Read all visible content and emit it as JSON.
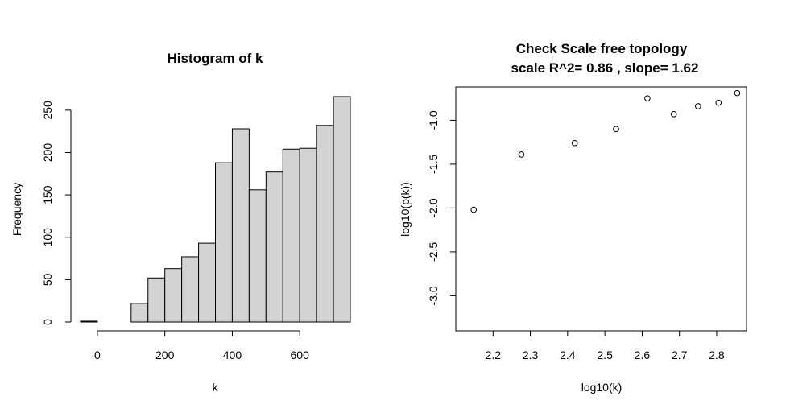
{
  "chart_data": [
    {
      "type": "bar",
      "title": "Histogram of k",
      "xlabel": "k",
      "ylabel": "Frequency",
      "bin_edges": [
        -50,
        0,
        50,
        100,
        150,
        200,
        250,
        300,
        350,
        400,
        450,
        500,
        550,
        600,
        650,
        700,
        750
      ],
      "values": [
        1,
        0,
        0,
        22,
        52,
        63,
        77,
        93,
        188,
        228,
        156,
        177,
        204,
        205,
        232,
        266
      ],
      "x_ticks": [
        0,
        200,
        400,
        600
      ],
      "y_ticks": [
        0,
        50,
        100,
        150,
        200,
        250
      ],
      "xlim": [
        -50,
        750
      ],
      "ylim": [
        0,
        266
      ],
      "grid": false
    },
    {
      "type": "scatter",
      "title": "Check Scale free topology",
      "subtitle": "scale R^2= 0.86 , slope= 1.62",
      "xlabel": "log10(k)",
      "ylabel": "log10(p(k))",
      "x": [
        2.148,
        2.276,
        2.419,
        2.53,
        2.614,
        2.685,
        2.75,
        2.805,
        2.855
      ],
      "y": [
        -2.02,
        -1.39,
        -1.26,
        -1.1,
        -0.75,
        -0.93,
        -0.84,
        -0.8,
        -0.69
      ],
      "x_ticks": [
        "2.2",
        "2.3",
        "2.4",
        "2.5",
        "2.6",
        "2.7",
        "2.8"
      ],
      "y_ticks": [
        "-3.0",
        "-2.5",
        "-2.0",
        "-1.5",
        "-1.0"
      ],
      "xlim": [
        2.1,
        2.88
      ],
      "ylim": [
        -3.4,
        -0.62
      ],
      "grid": false,
      "box": true
    }
  ]
}
